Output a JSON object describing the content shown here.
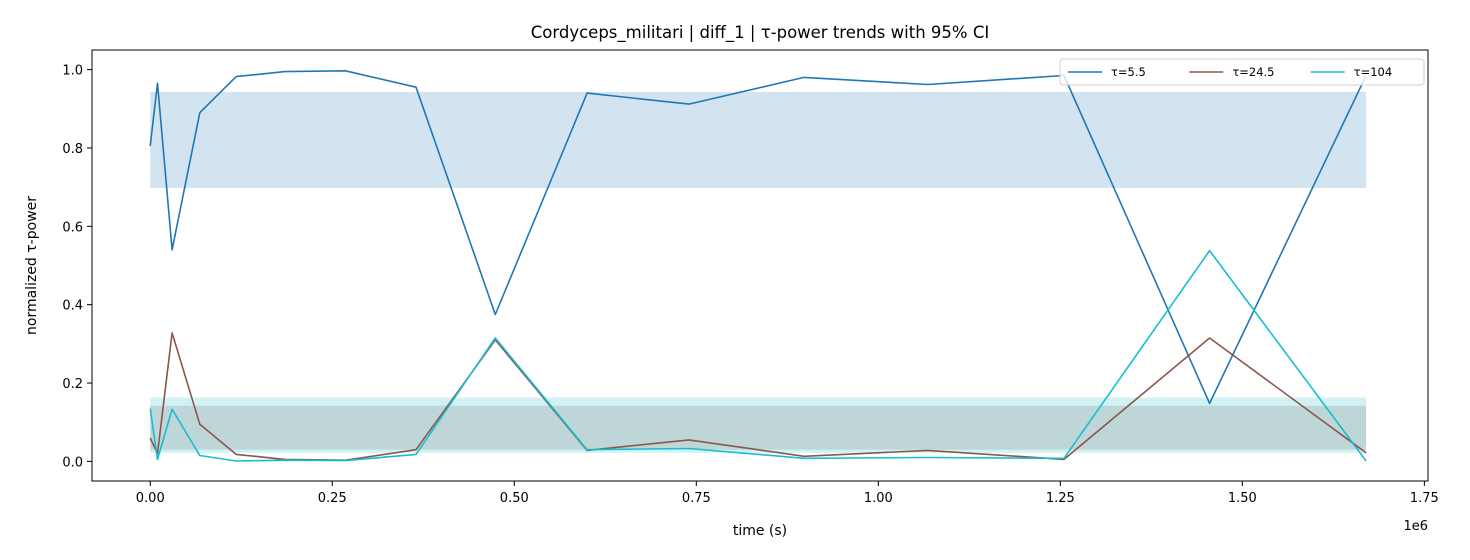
{
  "chart_data": {
    "type": "line",
    "title": "Cordyceps_militari | diff_1 | τ-power trends with 95% CI",
    "xlabel": "time (s)",
    "ylabel": "normalized τ-power",
    "x_offset_text": "1e6",
    "xlim": [
      -0.08,
      1.755
    ],
    "ylim": [
      -0.05,
      1.05
    ],
    "x_scale_factor": 1000000,
    "x_ticks": [
      0.0,
      0.25,
      0.5,
      0.75,
      1.0,
      1.25,
      1.5,
      1.75
    ],
    "x_tick_labels": [
      "0.00",
      "0.25",
      "0.50",
      "0.75",
      "1.00",
      "1.25",
      "1.50",
      "1.75"
    ],
    "y_ticks": [
      0.0,
      0.2,
      0.4,
      0.6,
      0.8,
      1.0
    ],
    "y_tick_labels": [
      "0.0",
      "0.2",
      "0.4",
      "0.6",
      "0.8",
      "1.0"
    ],
    "grid": false,
    "legend_position": "top-right",
    "x": [
      0.0,
      0.01,
      0.03,
      0.068,
      0.118,
      0.185,
      0.268,
      0.365,
      0.474,
      0.6,
      0.74,
      0.898,
      1.068,
      1.255,
      1.455,
      1.67
    ],
    "series": [
      {
        "name": "τ=5.5",
        "color": "#1f77b4",
        "values": [
          0.805,
          0.965,
          0.54,
          0.89,
          0.982,
          0.995,
          0.997,
          0.955,
          0.375,
          0.94,
          0.912,
          0.98,
          0.962,
          0.985,
          0.148,
          0.985
        ],
        "ci": [
          0.698,
          0.943
        ],
        "ci_color": "#1f77b4",
        "ci_opacity": 0.2
      },
      {
        "name": "τ=24.5",
        "color": "#8c564b",
        "values": [
          0.06,
          0.02,
          0.328,
          0.095,
          0.018,
          0.005,
          0.003,
          0.03,
          0.31,
          0.028,
          0.055,
          0.013,
          0.028,
          0.005,
          0.315,
          0.022
        ],
        "ci": [
          0.03,
          0.142
        ],
        "ci_color": "#8c564b",
        "ci_opacity": 0.2
      },
      {
        "name": "τ=104",
        "color": "#17becf",
        "values": [
          0.135,
          0.005,
          0.133,
          0.015,
          0.001,
          0.003,
          0.002,
          0.018,
          0.315,
          0.03,
          0.033,
          0.008,
          0.01,
          0.008,
          0.538,
          0.001
        ],
        "ci": [
          0.022,
          0.163
        ],
        "ci_color": "#17becf",
        "ci_opacity": 0.2
      }
    ]
  }
}
